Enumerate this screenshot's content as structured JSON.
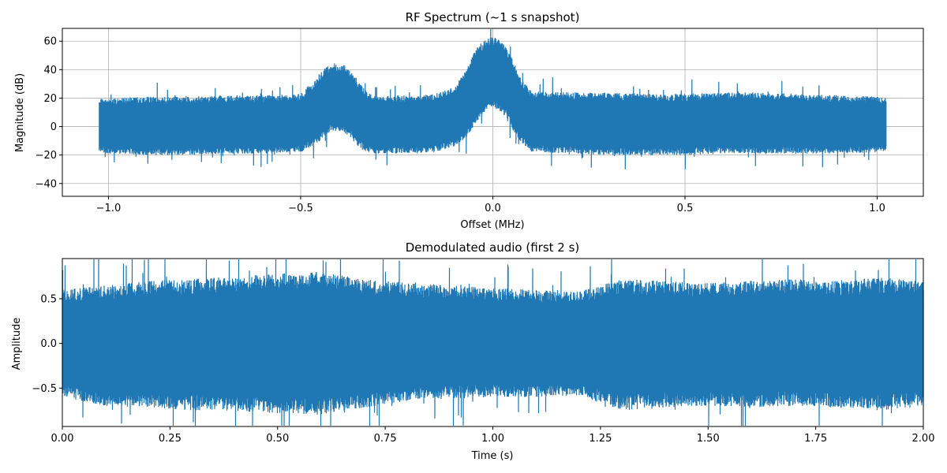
{
  "chart_data": [
    {
      "type": "line",
      "title": "RF Spectrum (~1 s snapshot)",
      "xlabel": "Offset (MHz)",
      "ylabel": "Magnitude (dB)",
      "xlim": [
        -1.12,
        1.12
      ],
      "ylim": [
        -49,
        69
      ],
      "grid": true,
      "xticks": [
        -1.0,
        -0.5,
        0.0,
        0.5,
        1.0
      ],
      "xtick_labels": [
        "−1.0",
        "−0.5",
        "0.0",
        "0.5",
        "1.0"
      ],
      "yticks": [
        -40,
        -20,
        0,
        20,
        40,
        60
      ],
      "ytick_labels": [
        "−40",
        "−20",
        "0",
        "20",
        "40",
        "60"
      ],
      "color": "#1f77b4",
      "series": [
        {
          "x": [
            -1.024,
            -1.0,
            -0.9,
            -0.8,
            -0.7,
            -0.6,
            -0.5,
            -0.47,
            -0.45,
            -0.43,
            -0.41,
            -0.39,
            -0.37,
            -0.35,
            -0.33,
            -0.3,
            -0.25,
            -0.2,
            -0.15,
            -0.1,
            -0.07,
            -0.05,
            -0.03,
            -0.01,
            0.0,
            0.01,
            0.03,
            0.05,
            0.07,
            0.1,
            0.2,
            0.3,
            0.4,
            0.5,
            0.6,
            0.7,
            0.8,
            0.9,
            1.0,
            1.024
          ],
          "upper": [
            20,
            20,
            21,
            21,
            22,
            22,
            23,
            30,
            38,
            43,
            45,
            44,
            40,
            32,
            25,
            21,
            22,
            22,
            23,
            28,
            40,
            52,
            59,
            62,
            63,
            62,
            58,
            48,
            35,
            25,
            24,
            24,
            23,
            23,
            24,
            24,
            23,
            22,
            21,
            20
          ],
          "lower": [
            -18,
            -19,
            -20,
            -20,
            -19,
            -19,
            -18,
            -14,
            -10,
            -5,
            -3,
            -4,
            -8,
            -14,
            -18,
            -19,
            -19,
            -19,
            -18,
            -14,
            -8,
            0,
            8,
            12,
            14,
            12,
            8,
            -2,
            -10,
            -18,
            -19,
            -20,
            -20,
            -20,
            -19,
            -19,
            -19,
            -19,
            -18,
            -18
          ]
        }
      ]
    },
    {
      "type": "line",
      "title": "Demodulated audio (first 2 s)",
      "xlabel": "Time (s)",
      "ylabel": "Amplitude",
      "xlim": [
        0.0,
        2.0
      ],
      "ylim": [
        -0.93,
        0.95
      ],
      "grid": false,
      "xticks": [
        0.0,
        0.25,
        0.5,
        0.75,
        1.0,
        1.25,
        1.5,
        1.75,
        2.0
      ],
      "xtick_labels": [
        "0.00",
        "0.25",
        "0.50",
        "0.75",
        "1.00",
        "1.25",
        "1.50",
        "1.75",
        "2.00"
      ],
      "yticks": [
        -0.5,
        0.0,
        0.5
      ],
      "ytick_labels": [
        "−0.5",
        "0.0",
        "0.5"
      ],
      "color": "#1f77b4",
      "series": [
        {
          "x": [
            0.0,
            0.1,
            0.2,
            0.3,
            0.4,
            0.5,
            0.6,
            0.7,
            0.8,
            0.9,
            1.0,
            1.1,
            1.2,
            1.3,
            1.4,
            1.5,
            1.6,
            1.7,
            1.8,
            1.9,
            2.0
          ],
          "upper": [
            0.6,
            0.65,
            0.7,
            0.72,
            0.75,
            0.78,
            0.8,
            0.72,
            0.68,
            0.65,
            0.62,
            0.6,
            0.58,
            0.72,
            0.7,
            0.68,
            0.7,
            0.72,
            0.7,
            0.74,
            0.7
          ],
          "lower": [
            -0.6,
            -0.7,
            -0.72,
            -0.75,
            -0.76,
            -0.78,
            -0.8,
            -0.72,
            -0.65,
            -0.62,
            -0.6,
            -0.6,
            -0.58,
            -0.75,
            -0.72,
            -0.7,
            -0.72,
            -0.7,
            -0.72,
            -0.75,
            -0.7
          ]
        }
      ]
    }
  ]
}
